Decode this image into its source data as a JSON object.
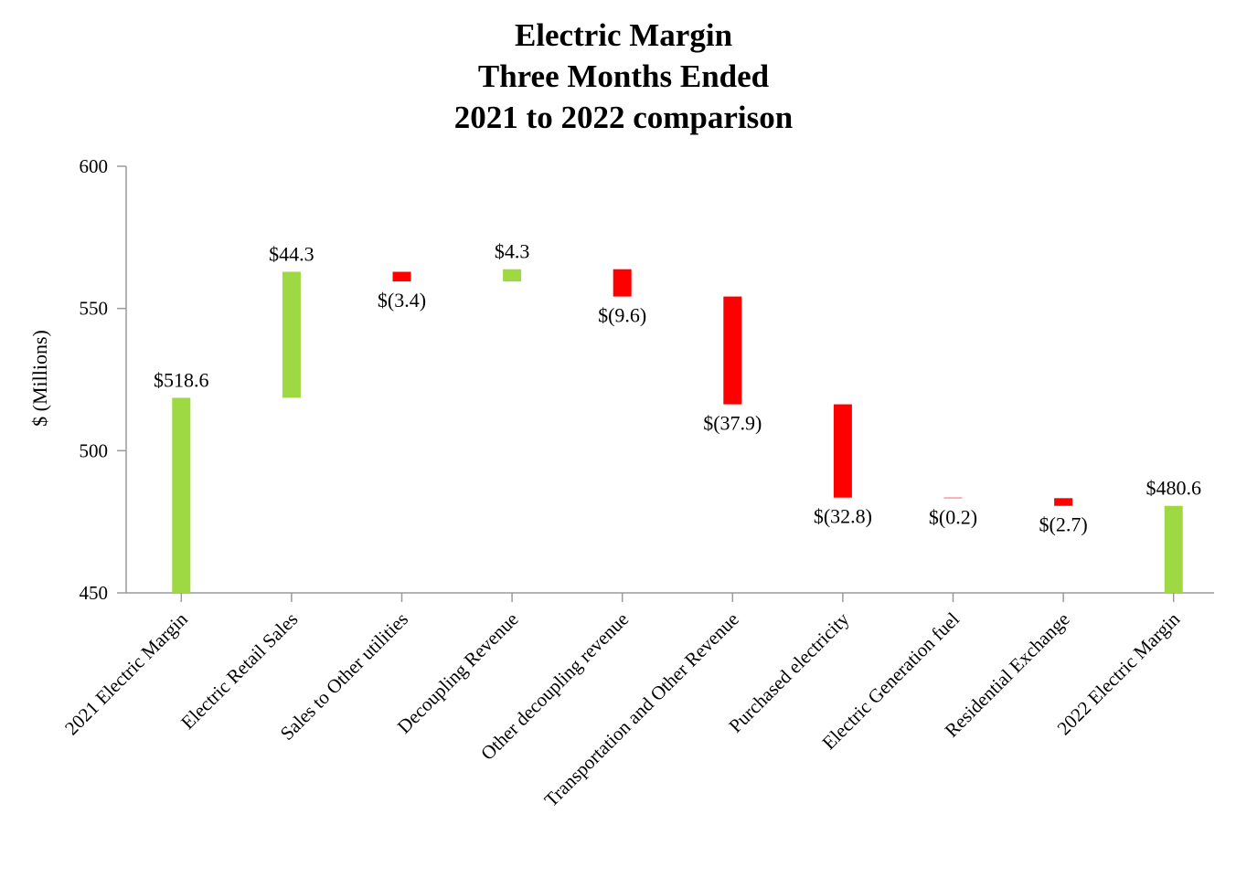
{
  "chart_data": {
    "type": "waterfall",
    "title": [
      "Electric Margin",
      "Three Months Ended",
      "2021 to 2022 comparison"
    ],
    "xlabel": "",
    "ylabel": "$ (Millions)",
    "ylim": [
      450,
      600
    ],
    "yticks": [
      450,
      500,
      550,
      600
    ],
    "categories": [
      "2021 Electric Margin",
      "Electric Retail Sales",
      "Sales to Other utilities",
      "Decoupling Revenue",
      "Other decoupling revenue",
      "Transportation and Other Revenue",
      "Purchased electricity",
      "Electric Generation fuel",
      "Residential Exchange",
      "2022 Electric Margin"
    ],
    "values": [
      518.6,
      44.3,
      -3.4,
      4.3,
      -9.6,
      -37.9,
      -32.8,
      -0.2,
      -2.7,
      480.6
    ],
    "kinds": [
      "total",
      "delta",
      "delta",
      "delta",
      "delta",
      "delta",
      "delta",
      "delta",
      "delta",
      "total"
    ],
    "data_labels": [
      "$518.6",
      "$44.3",
      "$(3.4)",
      "$4.3",
      "$(9.6)",
      "$(37.9)",
      "$(32.8)",
      "$(0.2)",
      "$(2.7)",
      "$480.6"
    ],
    "colors": {
      "increase": "#9ed843",
      "decrease": "#ff0000",
      "axis": "#9a9a9a"
    },
    "grid": false
  }
}
